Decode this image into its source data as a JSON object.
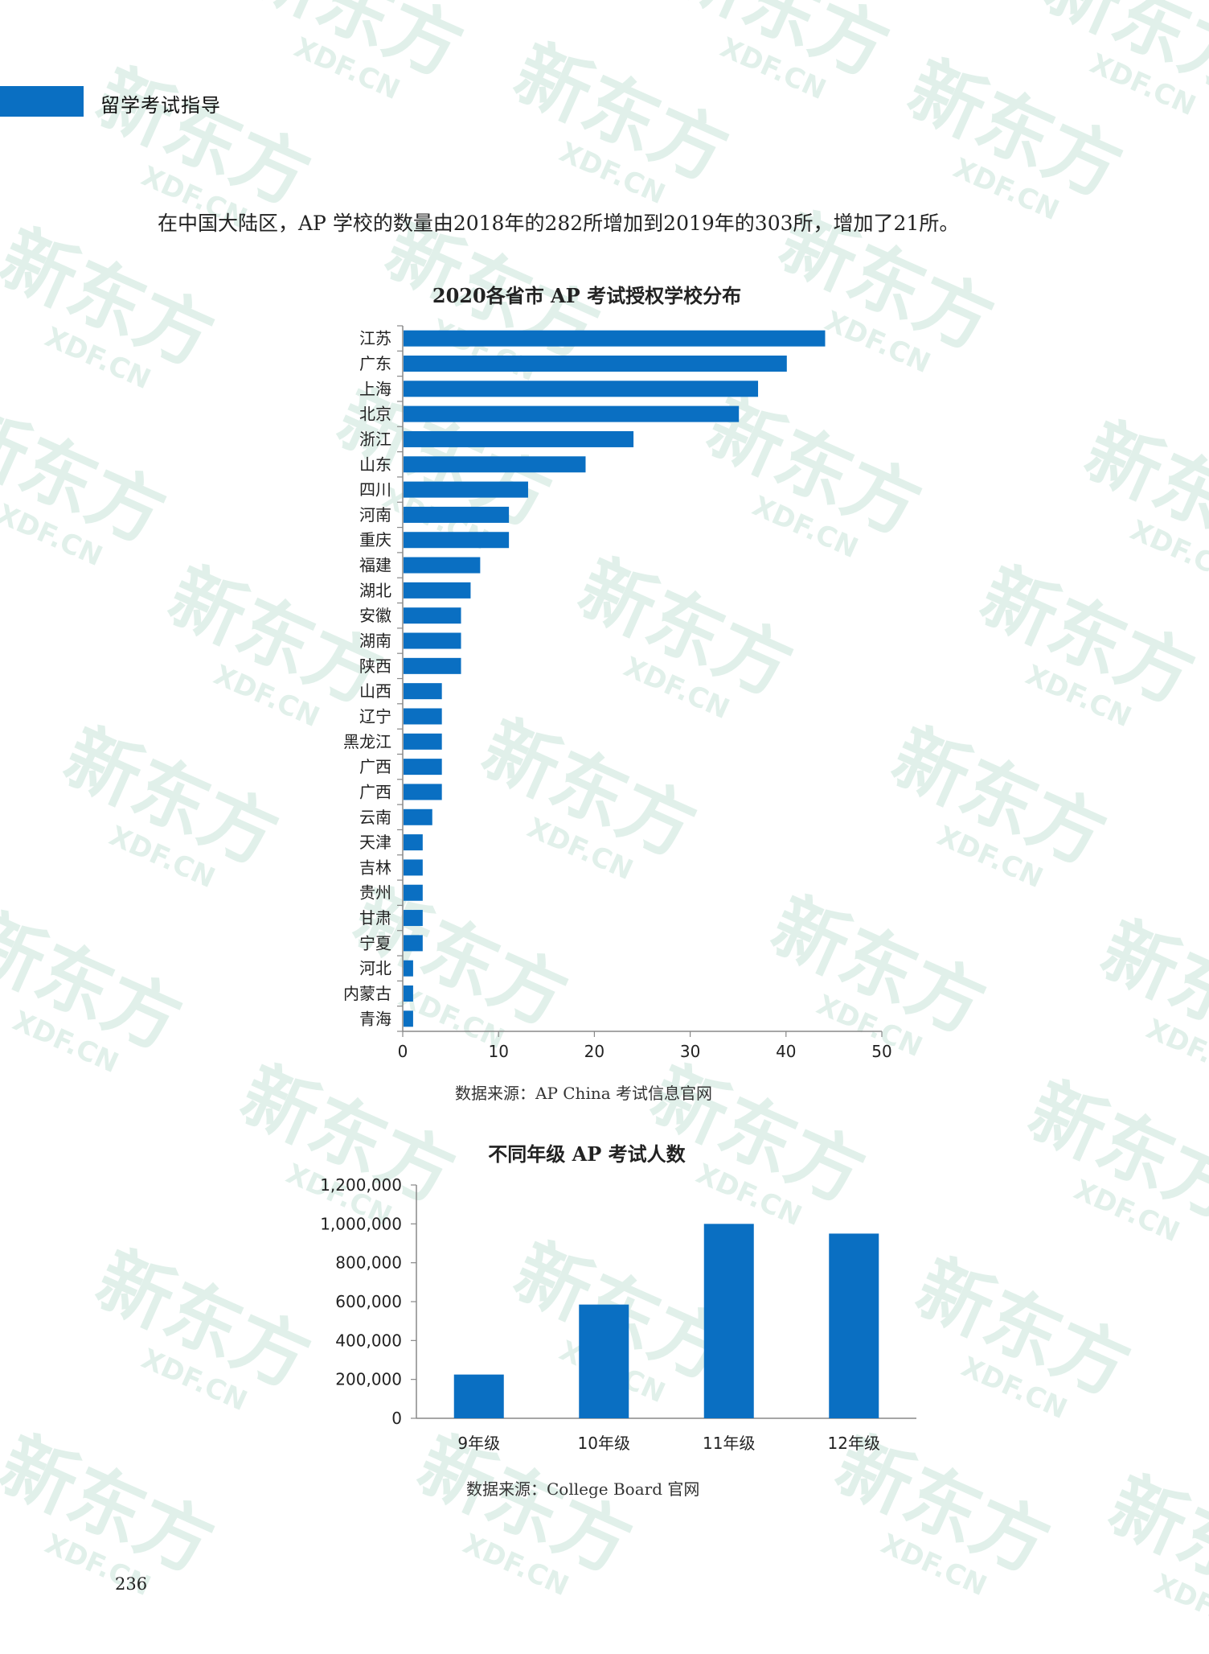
{
  "header": {
    "title": "留学考试指导"
  },
  "intro_text": "在中国大陆区，AP 学校的数量由2018年的282所增加到2019年的303所，增加了21所。",
  "charts": {
    "schools": {
      "title": "2020各省市 AP 考试授权学校分布",
      "source": "数据来源：AP China 考试信息官网"
    },
    "students": {
      "title": "不同年级 AP 考试人数",
      "source": "数据来源：College Board 官网"
    }
  },
  "page_number": "236",
  "colors": {
    "accent": "#0a6fc2",
    "bar": "#0a6fc2",
    "axis": "#888888",
    "watermark": "#d7ece4"
  },
  "watermark": {
    "brand": "新东方",
    "domain": "XDF.CN"
  },
  "chart_data": [
    {
      "type": "bar",
      "orientation": "horizontal",
      "title": "2020各省市 AP 考试授权学校分布",
      "categories": [
        "江苏",
        "广东",
        "上海",
        "北京",
        "浙江",
        "山东",
        "四川",
        "河南",
        "重庆",
        "福建",
        "湖北",
        "安徽",
        "湖南",
        "陕西",
        "山西",
        "辽宁",
        "黑龙江",
        "广西",
        "广西",
        "云南",
        "天津",
        "吉林",
        "贵州",
        "甘肃",
        "宁夏",
        "河北",
        "内蒙古",
        "青海"
      ],
      "values": [
        44,
        40,
        37,
        35,
        24,
        19,
        13,
        11,
        11,
        8,
        7,
        6,
        6,
        6,
        4,
        4,
        4,
        4,
        4,
        3,
        2,
        2,
        2,
        2,
        2,
        1,
        1,
        1
      ],
      "xlim": [
        0,
        50
      ],
      "xticks": [
        "0",
        "10",
        "20",
        "30",
        "40",
        "50"
      ],
      "xlabel": "",
      "ylabel": "",
      "grid": false
    },
    {
      "type": "bar",
      "orientation": "vertical",
      "title": "不同年级 AP 考试人数",
      "categories": [
        "9年级",
        "10年级",
        "11年级",
        "12年级"
      ],
      "values": [
        225000,
        585000,
        1000000,
        950000
      ],
      "ylim": [
        0,
        1200000
      ],
      "yticks": [
        "0",
        "200,000",
        "400,000",
        "600,000",
        "800,000",
        "1,000,000",
        "1,200,000"
      ],
      "xlabel": "",
      "ylabel": "",
      "grid": false
    }
  ]
}
